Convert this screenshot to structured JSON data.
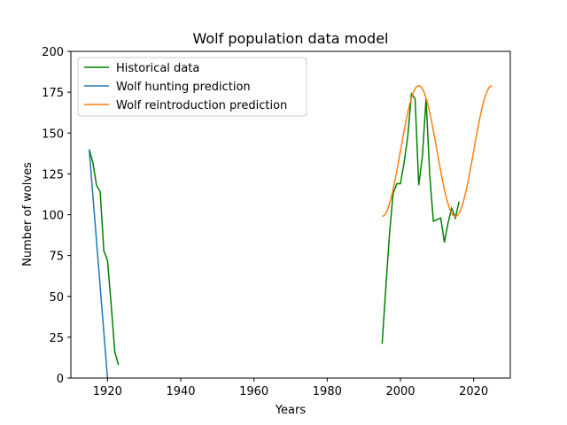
{
  "chart_data": {
    "type": "line",
    "title": "Wolf population data model",
    "xlabel": "Years",
    "ylabel": "Number of wolves",
    "xlim": [
      1910,
      2030
    ],
    "ylim": [
      0,
      200
    ],
    "xticks": [
      1920,
      1940,
      1960,
      1980,
      2000,
      2020
    ],
    "yticks": [
      0,
      25,
      50,
      75,
      100,
      125,
      150,
      175,
      200
    ],
    "legend_position": "top-left",
    "grid": false,
    "series": [
      {
        "name": "Historical data",
        "color": "#008000",
        "points": [
          [
            1915,
            140
          ],
          [
            1916,
            132
          ],
          [
            1917,
            118
          ],
          [
            1918,
            114
          ],
          [
            1919,
            78
          ],
          [
            1920,
            72
          ],
          [
            1921,
            45
          ],
          [
            1922,
            16
          ],
          [
            1923,
            8
          ]
        ],
        "points2": [
          [
            1995,
            21
          ],
          [
            1996,
            55
          ],
          [
            1997,
            88
          ],
          [
            1998,
            113
          ],
          [
            1999,
            119
          ],
          [
            2000,
            119
          ],
          [
            2001,
            132
          ],
          [
            2002,
            148
          ],
          [
            2003,
            174
          ],
          [
            2004,
            171
          ],
          [
            2005,
            118
          ],
          [
            2006,
            136
          ],
          [
            2007,
            171
          ],
          [
            2008,
            124
          ],
          [
            2009,
            96
          ],
          [
            2010,
            97
          ],
          [
            2011,
            98
          ],
          [
            2012,
            83
          ],
          [
            2013,
            95
          ],
          [
            2014,
            104
          ],
          [
            2015,
            98
          ],
          [
            2016,
            108
          ]
        ]
      },
      {
        "name": "Wolf hunting prediction",
        "color": "#1f77b4",
        "points": [
          [
            1915,
            140
          ],
          [
            1920,
            0
          ]
        ]
      },
      {
        "name": "Wolf reintroduction prediction",
        "color": "#ff7f0e",
        "curve": {
          "mean": 139,
          "amplitude": 40,
          "period": 20,
          "start_year": 1995,
          "end_year": 2025
        }
      }
    ]
  }
}
